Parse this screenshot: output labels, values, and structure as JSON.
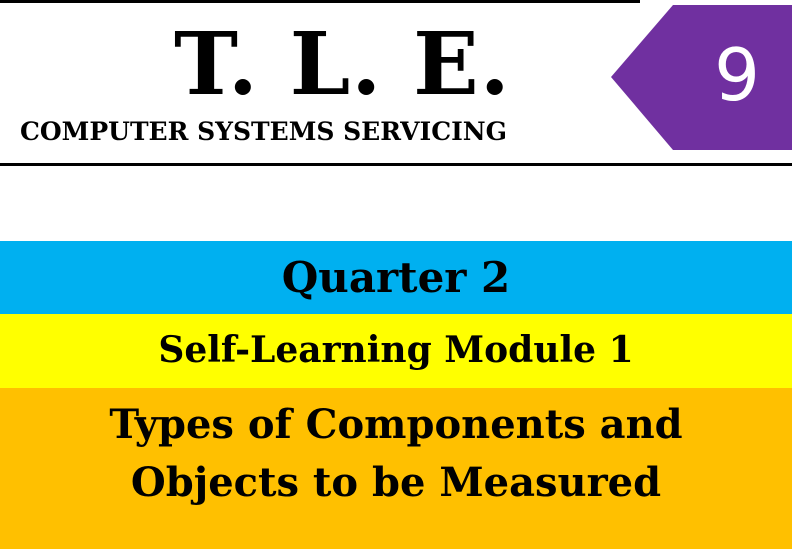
{
  "header": {
    "title": "T. L. E.",
    "subtitle": "COMPUTER SYSTEMS SERVICING",
    "grade": "9",
    "badge_color": "#7030a0"
  },
  "bands": {
    "quarter": "Quarter 2",
    "module": "Self-Learning Module 1",
    "topic_line1": "Types of Components and",
    "topic_line2": "Objects to be Measured"
  },
  "colors": {
    "quarter_band": "#00b0f0",
    "module_band": "#ffff00",
    "topic_band": "#ffc000"
  }
}
